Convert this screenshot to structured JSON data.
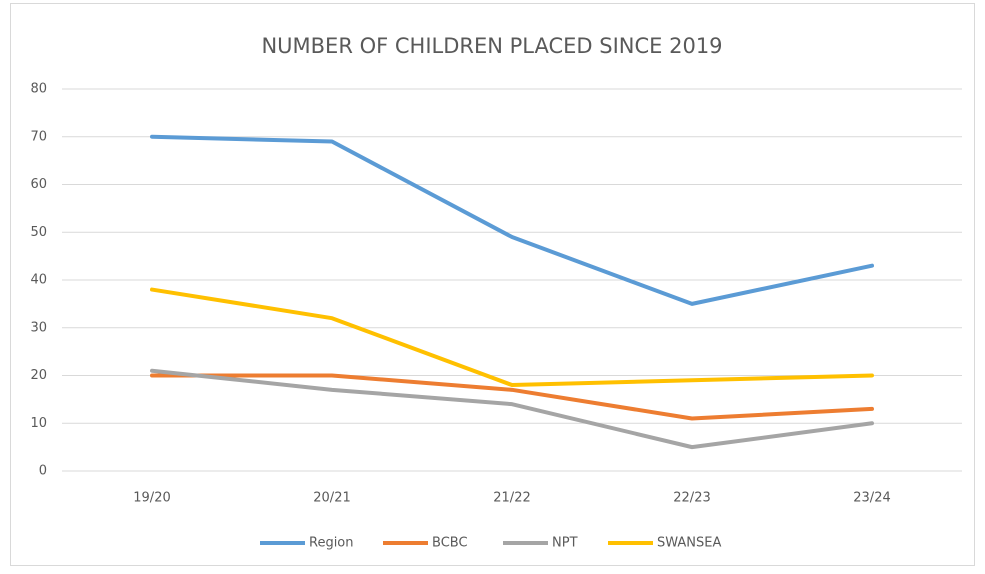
{
  "chart_data": {
    "type": "line",
    "title": "NUMBER OF CHILDREN PLACED SINCE 2019",
    "categories": [
      "19/20",
      "20/21",
      "21/22",
      "22/23",
      "23/24"
    ],
    "series": [
      {
        "name": "Region",
        "color": "#5b9bd5",
        "values": [
          70,
          69,
          49,
          35,
          43
        ]
      },
      {
        "name": "BCBC",
        "color": "#ed7d31",
        "values": [
          20,
          20,
          17,
          11,
          13
        ]
      },
      {
        "name": "NPT",
        "color": "#a5a5a5",
        "values": [
          21,
          17,
          14,
          5,
          10
        ]
      },
      {
        "name": "SWANSEA",
        "color": "#ffc000",
        "values": [
          38,
          32,
          18,
          19,
          20
        ]
      }
    ],
    "ylim": [
      0,
      80
    ],
    "yticks": [
      0,
      10,
      20,
      30,
      40,
      50,
      60,
      70,
      80
    ],
    "grid": true,
    "legend": "bottom"
  }
}
